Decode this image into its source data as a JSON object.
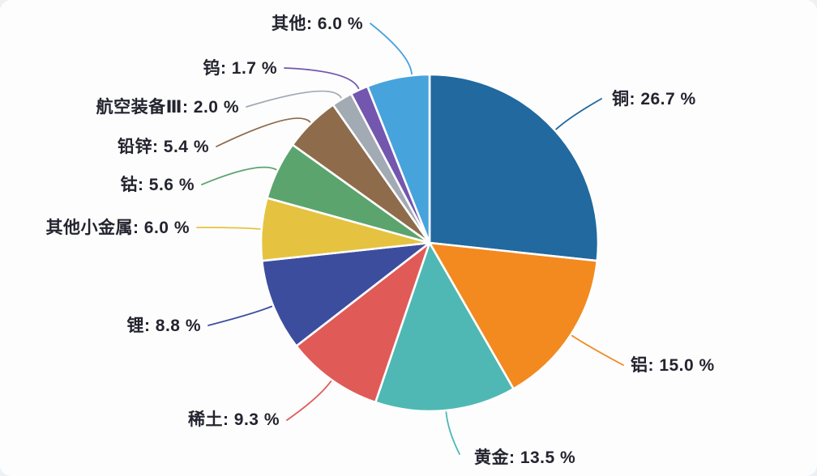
{
  "chart_data": {
    "type": "pie",
    "title": "",
    "direction": "clockwise",
    "start_angle": "12-o-clock",
    "legend_position": "none",
    "label_style": "outside-with-leader-lines",
    "text_color": "#23242e",
    "background_color": "#fdfdfe",
    "series": [
      {
        "label": "铜",
        "value": 26.7,
        "display": "铜: 26.7 %",
        "color": "#21699f"
      },
      {
        "label": "铝",
        "value": 15.0,
        "display": "铝: 15.0 %",
        "color": "#f28a20"
      },
      {
        "label": "黄金",
        "value": 13.5,
        "display": "黄金: 13.5 %",
        "color": "#4fb8b4"
      },
      {
        "label": "稀土",
        "value": 9.3,
        "display": "稀土: 9.3 %",
        "color": "#e05a57"
      },
      {
        "label": "锂",
        "value": 8.8,
        "display": "锂: 8.8 %",
        "color": "#3d4d9e"
      },
      {
        "label": "其他小金属",
        "value": 6.0,
        "display": "其他小金属: 6.0 %",
        "color": "#e5c341"
      },
      {
        "label": "钴",
        "value": 5.6,
        "display": "钴: 5.6 %",
        "color": "#5ca46e"
      },
      {
        "label": "铅锌",
        "value": 5.4,
        "display": "铅锌: 5.4 %",
        "color": "#8e6b4b"
      },
      {
        "label": "航空装备Ⅲ",
        "value": 2.0,
        "display": "航空装备Ⅲ: 2.0 %",
        "color": "#a2aab4"
      },
      {
        "label": "钨",
        "value": 1.7,
        "display": "钨: 1.7 %",
        "color": "#7356ae"
      },
      {
        "label": "其他",
        "value": 6.0,
        "display": "其他: 6.0 %",
        "color": "#47a3dc"
      }
    ]
  }
}
